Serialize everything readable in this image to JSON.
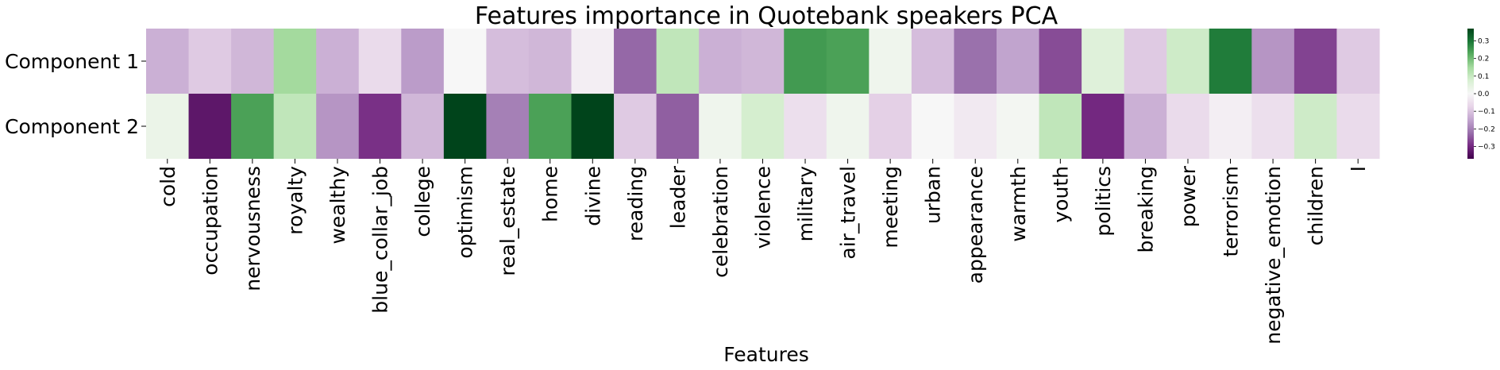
{
  "chart_data": {
    "type": "heatmap",
    "title": "Features importance in Quotebank speakers PCA",
    "xlabel": "Features",
    "ylabel": "",
    "rows": [
      "Component 1",
      "Component 2"
    ],
    "columns": [
      "cold",
      "occupation",
      "nervousness",
      "royalty",
      "wealthy",
      "blue_collar_job",
      "college",
      "optimism",
      "real_estate",
      "home",
      "divine",
      "reading",
      "leader",
      "celebration",
      "violence",
      "military",
      "air_travel",
      "meeting",
      "urban",
      "appearance",
      "warmth",
      "youth",
      "politics",
      "breaking",
      "power",
      "terrorism",
      "negative_emotion",
      "children",
      "I"
    ],
    "values": [
      [
        -0.13,
        -0.09,
        -0.12,
        0.15,
        -0.13,
        -0.06,
        -0.16,
        0.0,
        -0.11,
        -0.12,
        -0.02,
        -0.23,
        0.11,
        -0.13,
        -0.12,
        0.25,
        0.24,
        0.02,
        -0.11,
        -0.22,
        -0.15,
        -0.26,
        0.06,
        -0.09,
        0.09,
        0.29,
        -0.17,
        -0.27,
        -0.09
      ],
      [
        0.03,
        -0.33,
        0.24,
        0.11,
        -0.17,
        -0.29,
        -0.12,
        0.37,
        -0.2,
        0.24,
        0.37,
        -0.09,
        -0.24,
        0.02,
        0.08,
        -0.05,
        0.02,
        -0.08,
        0.0,
        -0.03,
        0.01,
        0.11,
        -0.3,
        -0.13,
        -0.06,
        -0.02,
        -0.05,
        0.09,
        -0.06
      ]
    ],
    "colorbar": {
      "colormap": "PRGn",
      "range": [
        -0.3,
        0.3
      ],
      "ticks": [
        0.3,
        0.2,
        0.1,
        0.0,
        -0.1,
        -0.2,
        -0.3
      ],
      "tick_labels": [
        "0.3",
        "0.2",
        "0.1",
        "0.0",
        "−0.1",
        "−0.2",
        "−0.3"
      ]
    }
  }
}
